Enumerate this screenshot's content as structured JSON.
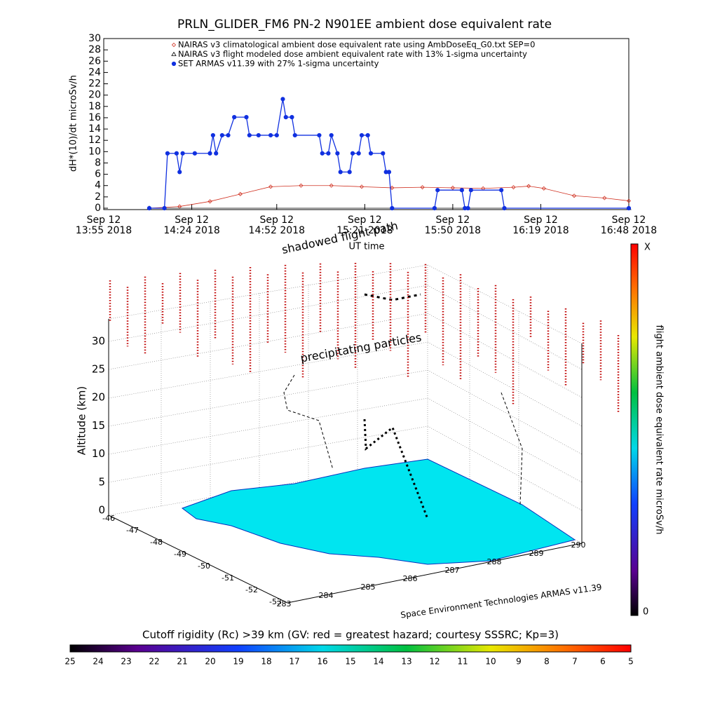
{
  "chart_data": {
    "type": "line",
    "title": "PRLN_GLIDER_FM6 PN-2 N901EE ambient dose equivalent rate",
    "ylabel": "dH*(10)/dt microSv/h",
    "xlabel": "UT time",
    "xlim": [
      "13:55",
      "16:48"
    ],
    "xticks": [
      {
        "value": "13:55",
        "label": [
          "Sep 12",
          "13:55 2018"
        ]
      },
      {
        "value": "14:24",
        "label": [
          "Sep 12",
          "14:24 2018"
        ]
      },
      {
        "value": "14:52",
        "label": [
          "Sep 12",
          "14:52 2018"
        ]
      },
      {
        "value": "15:21",
        "label": [
          "Sep 12",
          "15:21 2018"
        ]
      },
      {
        "value": "15:50",
        "label": [
          "Sep 12",
          "15:50 2018"
        ]
      },
      {
        "value": "16:19",
        "label": [
          "Sep 12",
          "16:19 2018"
        ]
      },
      {
        "value": "16:48",
        "label": [
          "Sep 12",
          "16:48 2018"
        ]
      }
    ],
    "ylim": [
      0,
      30
    ],
    "yticks": [
      0,
      2,
      4,
      6,
      8,
      10,
      12,
      14,
      16,
      18,
      20,
      22,
      24,
      26,
      28,
      30
    ],
    "series": [
      {
        "name": "NAIRAS v3 climatological ambient dose equivalent rate using AmbDoseEq_G0.txt SEP=0",
        "color": "#d03020",
        "marker": "diamond",
        "x": [
          "14:10",
          "14:20",
          "14:30",
          "14:40",
          "14:50",
          "15:00",
          "15:10",
          "15:20",
          "15:30",
          "15:40",
          "15:50",
          "16:00",
          "16:10",
          "16:15",
          "16:20",
          "16:30",
          "16:40",
          "16:48"
        ],
        "values": [
          0,
          0.3,
          1.2,
          2.5,
          3.8,
          4.0,
          4.0,
          3.8,
          3.6,
          3.7,
          3.6,
          3.5,
          3.7,
          3.9,
          3.5,
          2.2,
          1.8,
          1.3
        ]
      },
      {
        "name": "NAIRAS v3 flight modeled dose ambient equivalent rate with 13% 1-sigma uncertainty",
        "color": "#000000",
        "marker": "triangle",
        "x": [
          "14:10",
          "16:48"
        ],
        "values": [
          0,
          0
        ]
      },
      {
        "name": "SET ARMAS v11.39 with 27% 1-sigma uncertainty",
        "color": "#1030e0",
        "marker": "circle",
        "x": [
          "14:10",
          "14:15",
          "14:16",
          "14:19",
          "14:20",
          "14:21",
          "14:25",
          "14:30",
          "14:31",
          "14:32",
          "14:34",
          "14:36",
          "14:38",
          "14:42",
          "14:43",
          "14:46",
          "14:50",
          "14:52",
          "14:54",
          "14:55",
          "14:57",
          "14:58",
          "15:06",
          "15:07",
          "15:09",
          "15:10",
          "15:12",
          "15:13",
          "15:16",
          "15:17",
          "15:19",
          "15:20",
          "15:22",
          "15:23",
          "15:27",
          "15:28",
          "15:29",
          "15:30",
          "15:44",
          "15:45",
          "15:53",
          "15:54",
          "15:55",
          "15:56",
          "16:06",
          "16:07",
          "16:48"
        ],
        "values": [
          0,
          0,
          9.7,
          9.7,
          6.4,
          9.7,
          9.7,
          9.7,
          12.9,
          9.7,
          12.9,
          12.9,
          16.1,
          16.1,
          12.9,
          12.9,
          12.9,
          12.9,
          19.3,
          16.1,
          16.1,
          12.9,
          12.9,
          9.7,
          9.7,
          12.9,
          9.7,
          6.4,
          6.4,
          9.7,
          9.7,
          12.9,
          12.9,
          9.7,
          9.7,
          6.4,
          6.4,
          0,
          0,
          3.2,
          3.2,
          0,
          0,
          3.2,
          3.2,
          0,
          0
        ]
      }
    ]
  },
  "panel3d": {
    "annotations": [
      "shadowed flight path",
      "precipitating particles"
    ],
    "zlabel": "Altitude (km)",
    "zticks": [
      "0",
      "5",
      "10",
      "15",
      "20",
      "25",
      "30"
    ],
    "lat_ticks": [
      "-46",
      "-47",
      "-48",
      "-49",
      "-50",
      "-51",
      "-52",
      "-53"
    ],
    "lon_ticks": [
      "283",
      "284",
      "285",
      "286",
      "287",
      "288",
      "289",
      "290"
    ],
    "credit": "Space Environment Technologies ARMAS v11.39",
    "colorbar": {
      "label": "flight ambient dose equivalent rate microSv/h",
      "top": "X",
      "bottom": "0"
    },
    "rigidity_bar": {
      "title": "Cutoff rigidity (Rc) >39 km (GV: red = greatest hazard; courtesy SSSRC; Kp=3)",
      "ticks": [
        "25",
        "24",
        "23",
        "22",
        "21",
        "20",
        "19",
        "18",
        "17",
        "16",
        "15",
        "14",
        "13",
        "12",
        "11",
        "10",
        "9",
        "8",
        "7",
        "6",
        "5"
      ]
    }
  }
}
